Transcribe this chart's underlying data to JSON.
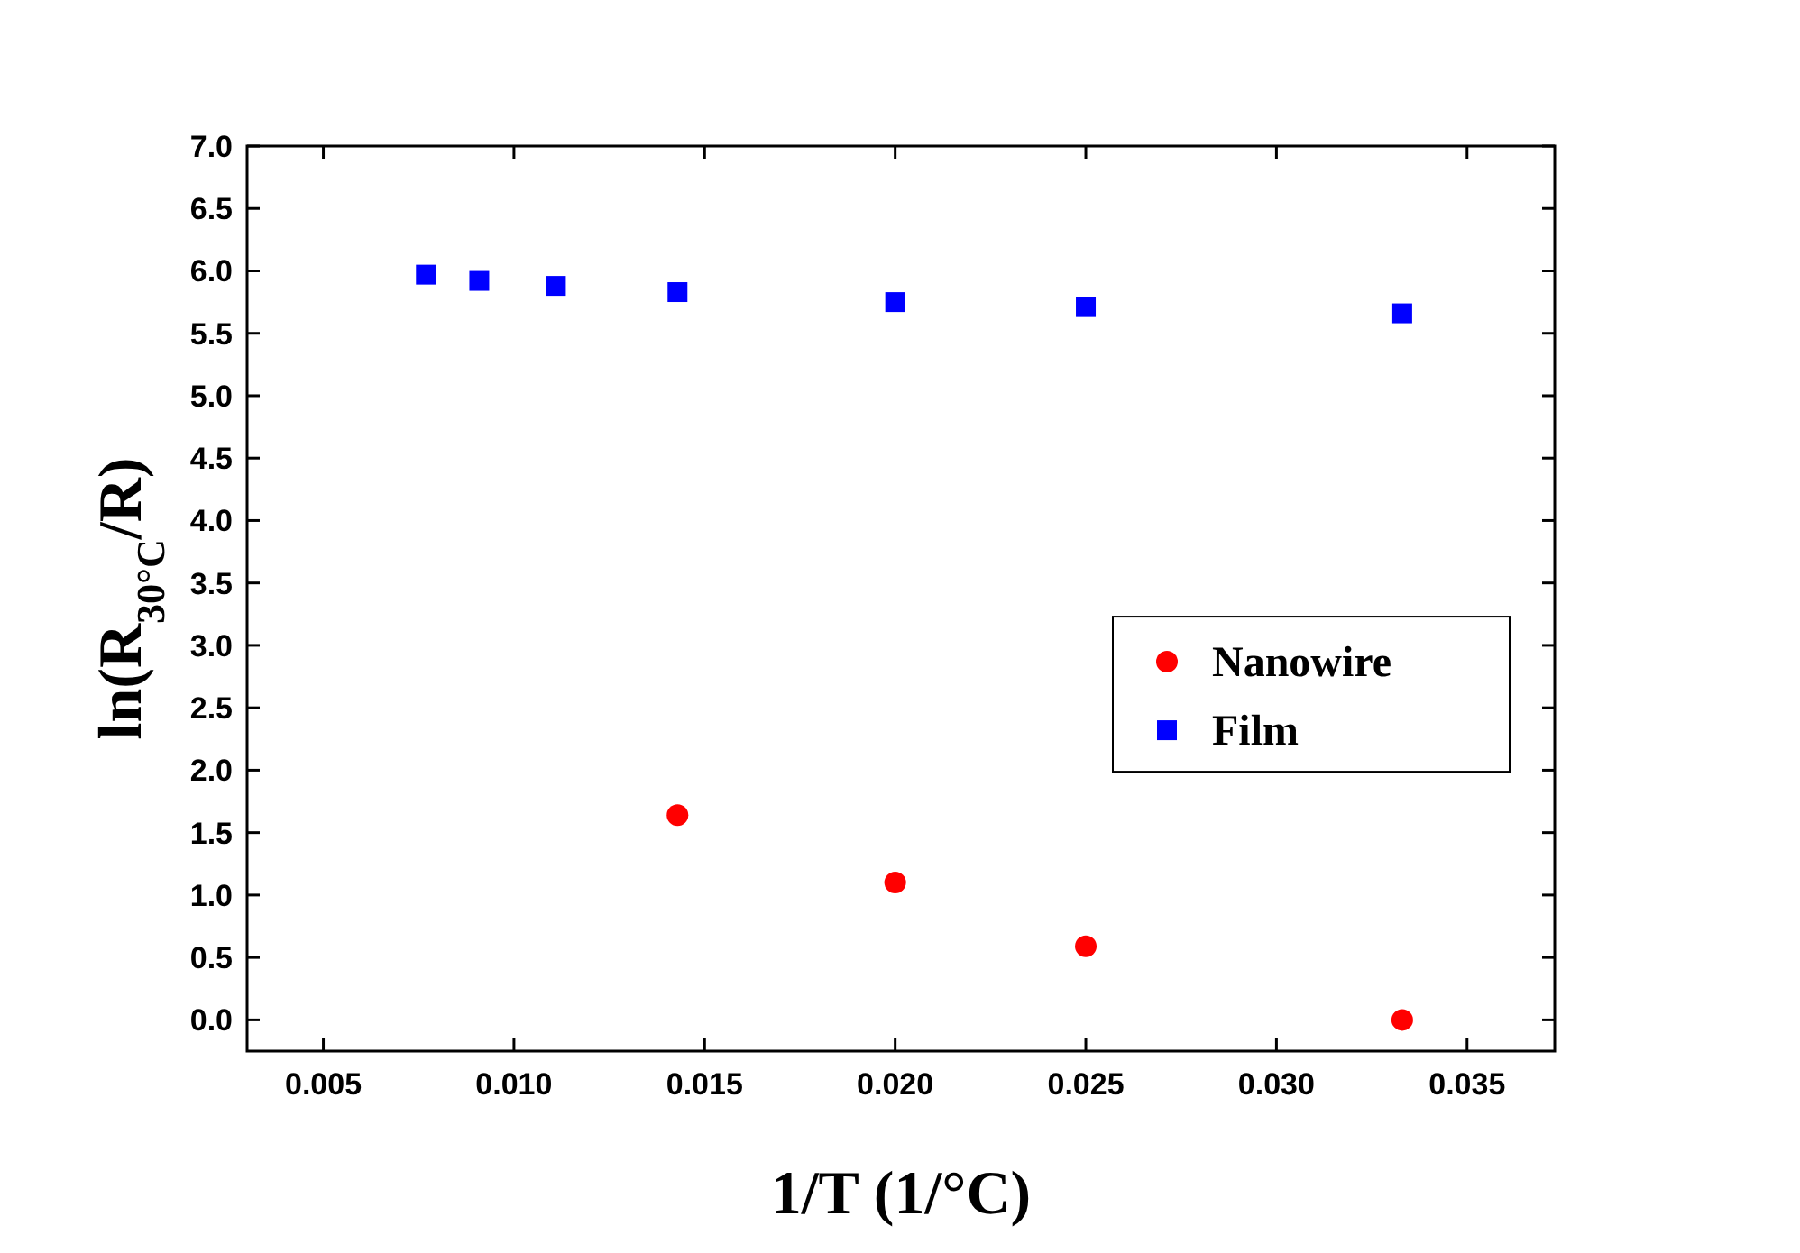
{
  "chart_data": {
    "type": "scatter",
    "xlabel": "1/T (1/°C)",
    "ylabel": "ln(R$_{30°C}$/R)",
    "xlim": [
      0.003,
      0.0373
    ],
    "xticks": [
      {
        "value": 0.005,
        "label": "0.005"
      },
      {
        "value": 0.01,
        "label": "0.010"
      },
      {
        "value": 0.015,
        "label": "0.015"
      },
      {
        "value": 0.02,
        "label": "0.020"
      },
      {
        "value": 0.025,
        "label": "0.025"
      },
      {
        "value": 0.03,
        "label": "0.030"
      },
      {
        "value": 0.035,
        "label": "0.035"
      }
    ],
    "ylim": [
      -0.25,
      7
    ],
    "yticks": [
      {
        "value": 0,
        "label": "0.0"
      },
      {
        "value": 0.5,
        "label": "0.5"
      },
      {
        "value": 1,
        "label": "1.0"
      },
      {
        "value": 1.5,
        "label": "1.5"
      },
      {
        "value": 2,
        "label": "2.0"
      },
      {
        "value": 2.5,
        "label": "2.5"
      },
      {
        "value": 3,
        "label": "3.0"
      },
      {
        "value": 3.5,
        "label": "3.5"
      },
      {
        "value": 4,
        "label": "4.0"
      },
      {
        "value": 4.5,
        "label": "4.5"
      },
      {
        "value": 5,
        "label": "5.0"
      },
      {
        "value": 5.5,
        "label": "5.5"
      },
      {
        "value": 6,
        "label": "6.0"
      },
      {
        "value": 6.5,
        "label": "6.5"
      },
      {
        "value": 7,
        "label": "7.0"
      }
    ],
    "legend": "right",
    "grid": false,
    "series": [
      {
        "name": "Nanowire",
        "color": "#ff0000",
        "marker": "circle",
        "x": [
          0.01429,
          0.02,
          0.025,
          0.0333
        ],
        "values": [
          1.64,
          1.1,
          0.59,
          0.0
        ]
      },
      {
        "name": "Film",
        "color": "#0000ff",
        "marker": "square",
        "x": [
          0.00769,
          0.00909,
          0.0111,
          0.01429,
          0.02,
          0.025,
          0.0333
        ],
        "values": [
          5.97,
          5.92,
          5.88,
          5.83,
          5.75,
          5.71,
          5.66
        ]
      }
    ]
  }
}
